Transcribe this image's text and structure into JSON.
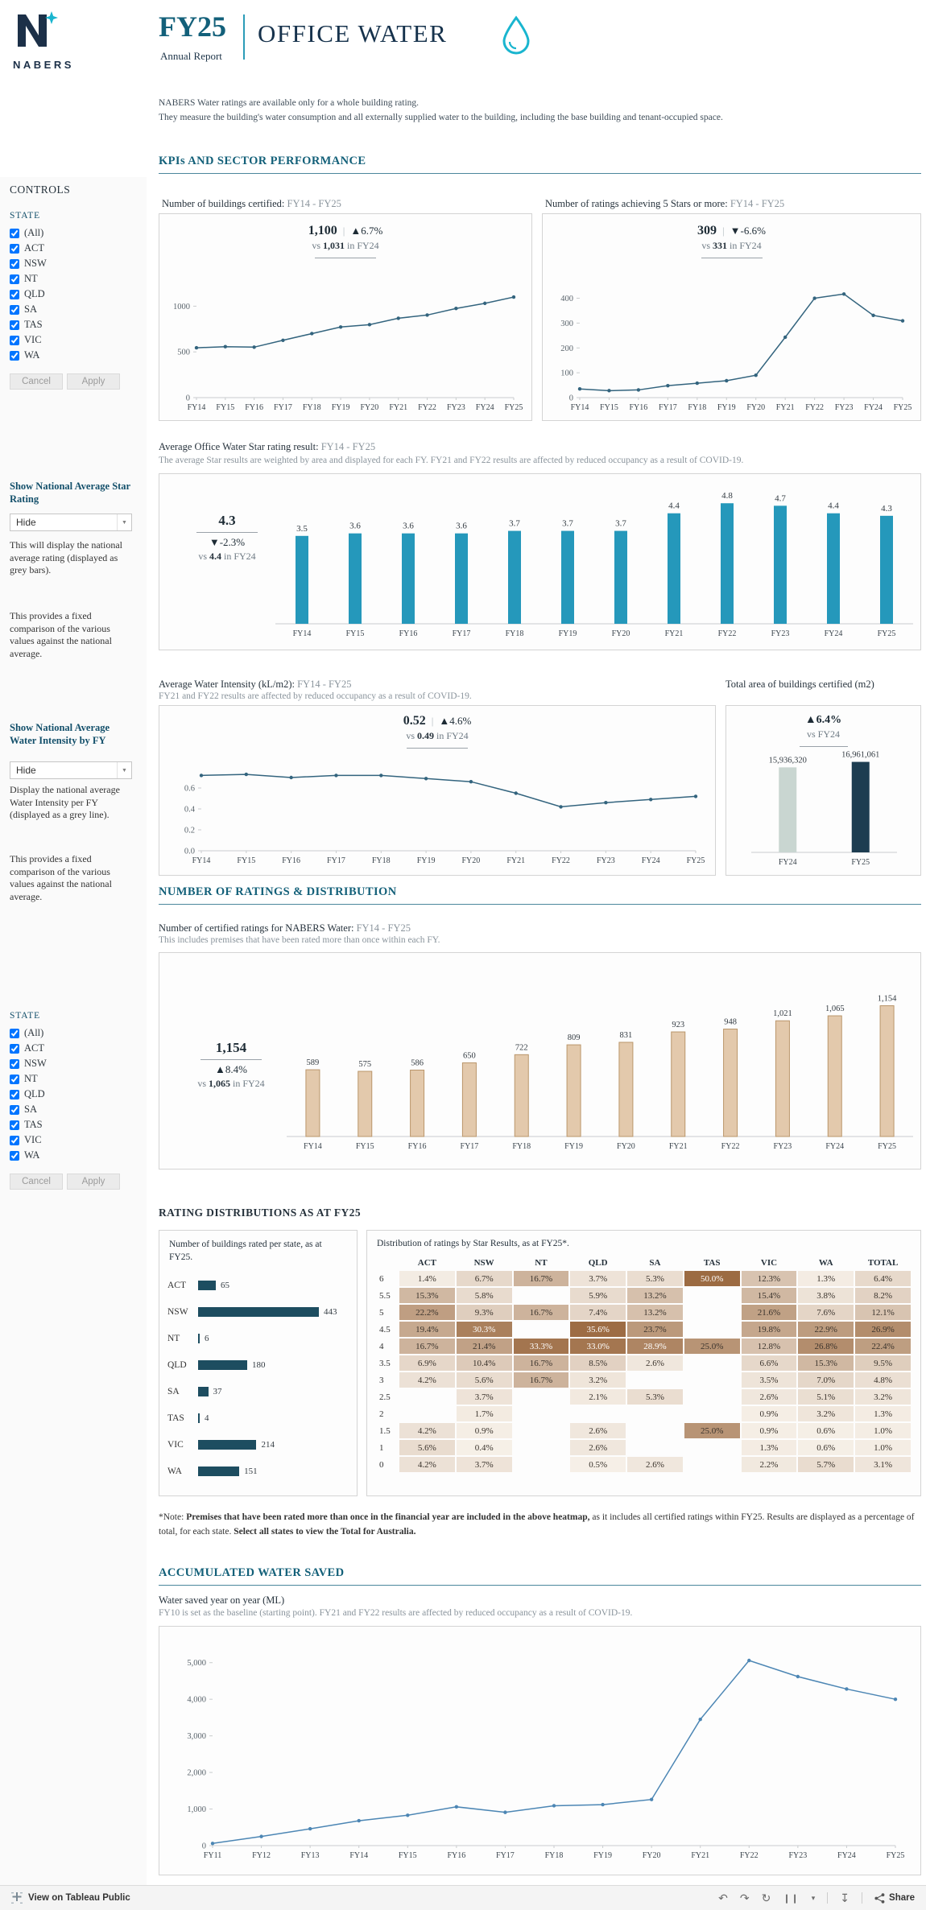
{
  "header": {
    "logo_text": "NABERS",
    "fy_title": "FY25",
    "annual_report": "Annual Report",
    "report_title": "OFFICE WATER",
    "description_lines": [
      "NABERS Water ratings are available only for a whole building rating.",
      "They measure the building's water consumption and all externally supplied water to the building, including the base building and tenant-occupied space."
    ]
  },
  "sidebar": {
    "controls_title": "CONTROLS",
    "state_label": "STATE",
    "state_options": [
      "(All)",
      "ACT",
      "NSW",
      "NT",
      "QLD",
      "SA",
      "TAS",
      "VIC",
      "WA"
    ],
    "cancel_label": "Cancel",
    "apply_label": "Apply",
    "star_control": {
      "title": "Show National Average Star Rating",
      "value": "Hide",
      "desc1": "This will display the national average rating (displayed as grey bars).",
      "desc2": "This provides a fixed comparison of the various values against the national average."
    },
    "intensity_control": {
      "title": "Show National Average Water Intensity by FY",
      "value": "Hide",
      "desc1": "Display the national average Water Intensity per FY (displayed as a grey line).",
      "desc2": "This provides a fixed comparison of the various values against the national average."
    }
  },
  "section_headings": {
    "kpis": "KPIs AND SECTOR PERFORMANCE",
    "ratings": "NUMBER OF RATINGS & DISTRIBUTION",
    "distributions": "RATING DISTRIBUTIONS AS AT FY25",
    "saved": "ACCUMULATED WATER SAVED"
  },
  "note": {
    "prefix": "*Note: ",
    "bold1": "Premises that have been rated more than once in the financial year are included in the above heatmap,",
    "text1": " as it includes all certified ratings within FY25. Results are displayed as a percentage of total, for each state. ",
    "bold2": "Select all states to view the Total for Australia."
  },
  "footer": {
    "attribution": "View on Tableau Public",
    "share_label": "Share"
  },
  "accent_colors": {
    "heading_teal": "#136079",
    "line_slate": "#33647e",
    "star_bar": "#2598bb",
    "tan_bar": "#e3c9ac",
    "state_bar": "#1d4d60",
    "fy24_area_bar": "#c9d6d1",
    "fy25_area_bar": "#1d3d51",
    "water_saved_line": "#4c86b4",
    "drop_cyan": "#19b5cf"
  },
  "chart_data": [
    {
      "id": "buildings_certified",
      "type": "line",
      "title": "Number of buildings certified:",
      "title_range": " FY14 - FY25",
      "kpi": {
        "value": "1,100",
        "delta": "▲6.7%",
        "compare_pre": "vs ",
        "compare_strong": "1,031",
        "compare_post": " in FY24"
      },
      "categories": [
        "FY14",
        "FY15",
        "FY16",
        "FY17",
        "FY18",
        "FY19",
        "FY20",
        "FY21",
        "FY22",
        "FY23",
        "FY24",
        "FY25"
      ],
      "values": [
        545,
        557,
        552,
        627,
        700,
        772,
        798,
        868,
        903,
        975,
        1031,
        1100
      ],
      "ylim": [
        0,
        1250
      ],
      "yticks": [
        0,
        500,
        1000
      ],
      "grid": false,
      "legend": "none"
    },
    {
      "id": "five_star_ratings",
      "type": "line",
      "title": "Number of ratings achieving 5 Stars or more:",
      "title_range": " FY14 - FY25",
      "kpi": {
        "value": "309",
        "delta": "▼-6.6%",
        "compare_pre": "vs ",
        "compare_strong": "331",
        "compare_post": " in FY24"
      },
      "categories": [
        "FY14",
        "FY15",
        "FY16",
        "FY17",
        "FY18",
        "FY19",
        "FY20",
        "FY21",
        "FY22",
        "FY23",
        "FY24",
        "FY25"
      ],
      "values": [
        35,
        28,
        31,
        48,
        58,
        68,
        90,
        243,
        400,
        417,
        331,
        309
      ],
      "ylim": [
        0,
        460
      ],
      "yticks": [
        0,
        100,
        200,
        300,
        400
      ],
      "grid": false,
      "legend": "none"
    },
    {
      "id": "star_rating",
      "type": "bar",
      "title": "Average Office Water Star rating result:",
      "title_range": " FY14 - FY25",
      "subtitle": "The average Star results are weighted by area and displayed for each FY. FY21 and FY22 results are affected by reduced occupancy as a result of COVID-19.",
      "kpi": {
        "value": "4.3",
        "delta": "▼-2.3%",
        "compare_pre": "vs ",
        "compare_strong": "4.4",
        "compare_post": " in FY24"
      },
      "categories": [
        "FY14",
        "FY15",
        "FY16",
        "FY17",
        "FY18",
        "FY19",
        "FY20",
        "FY21",
        "FY22",
        "FY23",
        "FY24",
        "FY25"
      ],
      "values": [
        3.5,
        3.6,
        3.6,
        3.6,
        3.7,
        3.7,
        3.7,
        4.4,
        4.8,
        4.7,
        4.4,
        4.3
      ],
      "value_labels": [
        "3.5",
        "3.6",
        "3.6",
        "3.6",
        "3.7",
        "3.7",
        "3.7",
        "4.4",
        "4.8",
        "4.7",
        "4.4",
        "4.3"
      ],
      "ylim": [
        0,
        5
      ]
    },
    {
      "id": "water_intensity",
      "type": "line",
      "title": "Average Water Intensity (kL/m2):",
      "title_range": " FY14 - FY25",
      "subtitle": "FY21 and FY22 results are affected by reduced occupancy as a result of COVID-19.",
      "kpi": {
        "value": "0.52",
        "delta": "▲4.6%",
        "compare_pre": "vs ",
        "compare_strong": "0.49",
        "compare_post": " in FY24"
      },
      "categories": [
        "FY14",
        "FY15",
        "FY16",
        "FY17",
        "FY18",
        "FY19",
        "FY20",
        "FY21",
        "FY22",
        "FY23",
        "FY24",
        "FY25"
      ],
      "values": [
        0.72,
        0.73,
        0.7,
        0.72,
        0.72,
        0.69,
        0.66,
        0.55,
        0.42,
        0.46,
        0.49,
        0.52
      ],
      "ylim": [
        0,
        0.8
      ],
      "yticks": [
        0,
        0.2,
        0.4,
        0.6
      ]
    },
    {
      "id": "total_area",
      "type": "bar",
      "title": "Total area of buildings certified (m2)",
      "kpi": {
        "delta": "▲6.4%",
        "compare_pre": "vs ",
        "compare_strong": "",
        "compare_post": "FY24"
      },
      "categories": [
        "FY24",
        "FY25"
      ],
      "values": [
        15936320,
        16961061
      ],
      "value_labels": [
        "15,936,320",
        "16,961,061"
      ],
      "colors": [
        "#c9d6d1",
        "#1d3d51"
      ],
      "ylim": [
        0,
        17500000
      ]
    },
    {
      "id": "certified_ratings",
      "type": "bar",
      "title": "Number of certified ratings for NABERS Water:",
      "title_range": " FY14 - FY25",
      "subtitle": "This includes premises that have been rated more than once within each FY.",
      "kpi": {
        "value": "1,154",
        "delta": "▲8.4%",
        "compare_pre": "vs ",
        "compare_strong": "1,065",
        "compare_post": " in FY24"
      },
      "categories": [
        "FY14",
        "FY15",
        "FY16",
        "FY17",
        "FY18",
        "FY19",
        "FY20",
        "FY21",
        "FY22",
        "FY23",
        "FY24",
        "FY25"
      ],
      "values": [
        589,
        575,
        586,
        650,
        722,
        809,
        831,
        923,
        948,
        1021,
        1065,
        1154
      ],
      "value_labels": [
        "589",
        "575",
        "586",
        "650",
        "722",
        "809",
        "831",
        "923",
        "948",
        "1,021",
        "1,065",
        "1,154"
      ],
      "ylim": [
        0,
        1250
      ]
    },
    {
      "id": "buildings_per_state",
      "type": "bar",
      "orientation": "horizontal",
      "title": "Number of buildings rated per state, as at FY25.",
      "categories": [
        "ACT",
        "NSW",
        "NT",
        "QLD",
        "SA",
        "TAS",
        "VIC",
        "WA"
      ],
      "values": [
        65,
        443,
        6,
        180,
        37,
        4,
        214,
        151
      ],
      "xlim": [
        0,
        443
      ]
    },
    {
      "id": "star_distribution",
      "type": "heatmap",
      "title": "Distribution of ratings by Star Results, as at FY25*.",
      "columns": [
        "ACT",
        "NSW",
        "NT",
        "QLD",
        "SA",
        "TAS",
        "VIC",
        "WA",
        "TOTAL"
      ],
      "rows": [
        "6",
        "5.5",
        "5",
        "4.5",
        "4",
        "3.5",
        "3",
        "2.5",
        "2",
        "1.5",
        "1",
        "0"
      ],
      "cells": [
        [
          "1.4%",
          "6.7%",
          "16.7%",
          "3.7%",
          "5.3%",
          "50.0%",
          "12.3%",
          "1.3%",
          "6.4%"
        ],
        [
          "15.3%",
          "5.8%",
          "",
          "5.9%",
          "13.2%",
          "",
          "15.4%",
          "3.8%",
          "8.2%"
        ],
        [
          "22.2%",
          "9.3%",
          "16.7%",
          "7.4%",
          "13.2%",
          "",
          "21.6%",
          "7.6%",
          "12.1%"
        ],
        [
          "19.4%",
          "30.3%",
          "",
          "35.6%",
          "23.7%",
          "",
          "19.8%",
          "22.9%",
          "26.9%"
        ],
        [
          "16.7%",
          "21.4%",
          "33.3%",
          "33.0%",
          "28.9%",
          "25.0%",
          "12.8%",
          "26.8%",
          "22.4%"
        ],
        [
          "6.9%",
          "10.4%",
          "16.7%",
          "8.5%",
          "2.6%",
          "",
          "6.6%",
          "15.3%",
          "9.5%"
        ],
        [
          "4.2%",
          "5.6%",
          "16.7%",
          "3.2%",
          "",
          "",
          "3.5%",
          "7.0%",
          "4.8%"
        ],
        [
          "",
          "3.7%",
          "",
          "2.1%",
          "5.3%",
          "",
          "2.6%",
          "5.1%",
          "3.2%"
        ],
        [
          "",
          "1.7%",
          "",
          "",
          "",
          "",
          "0.9%",
          "3.2%",
          "1.3%"
        ],
        [
          "4.2%",
          "0.9%",
          "",
          "2.6%",
          "",
          "25.0%",
          "0.9%",
          "0.6%",
          "1.0%"
        ],
        [
          "5.6%",
          "0.4%",
          "",
          "2.6%",
          "",
          "",
          "1.3%",
          "0.6%",
          "1.0%"
        ],
        [
          "4.2%",
          "3.7%",
          "",
          "0.5%",
          "2.6%",
          "",
          "2.2%",
          "5.7%",
          "3.1%"
        ]
      ]
    },
    {
      "id": "water_saved",
      "type": "line",
      "title": "Water saved year on year (ML)",
      "subtitle": "FY10 is set as the baseline (starting point). FY21 and FY22 results are affected by reduced occupancy as a result of COVID-19.",
      "categories": [
        "FY11",
        "FY12",
        "FY13",
        "FY14",
        "FY15",
        "FY16",
        "FY17",
        "FY18",
        "FY19",
        "FY20",
        "FY21",
        "FY22",
        "FY23",
        "FY24",
        "FY25"
      ],
      "values": [
        60,
        250,
        460,
        680,
        830,
        1060,
        910,
        1090,
        1120,
        1260,
        3450,
        5060,
        4620,
        4280,
        4000
      ],
      "ylim": [
        0,
        5500
      ],
      "yticks": [
        0,
        1000,
        2000,
        3000,
        4000,
        5000
      ]
    }
  ]
}
